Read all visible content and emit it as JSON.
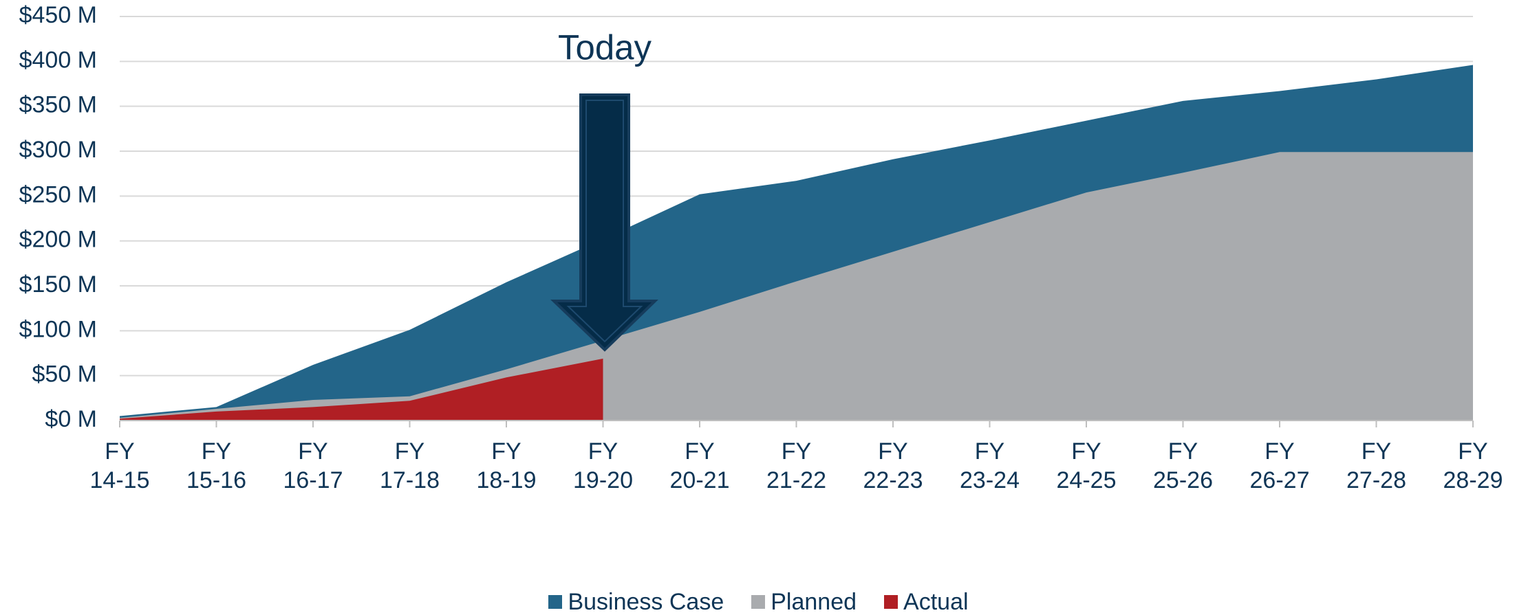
{
  "chart_data": {
    "type": "area",
    "annotation": "Today",
    "categories": [
      "FY\n14-15",
      "FY\n15-16",
      "FY\n16-17",
      "FY\n17-18",
      "FY\n18-19",
      "FY\n19-20",
      "FY\n20-21",
      "FY\n21-22",
      "FY\n22-23",
      "FY\n23-24",
      "FY\n24-25",
      "FY\n25-26",
      "FY\n26-27",
      "FY\n27-28",
      "FY\n28-29"
    ],
    "series": [
      {
        "name": "Business Case",
        "color": "#236589",
        "values": [
          5,
          15,
          62,
          101,
          154,
          202,
          252,
          267,
          291,
          312,
          334,
          356,
          367,
          380,
          396
        ]
      },
      {
        "name": "Planned",
        "color": "#a9abae",
        "values": [
          3,
          13,
          23,
          27,
          57,
          89,
          121,
          155,
          188,
          221,
          254,
          276,
          299,
          299,
          299
        ]
      },
      {
        "name": "Actual",
        "color": "#b01f24",
        "values": [
          2,
          10,
          15,
          22,
          48,
          69,
          null,
          null,
          null,
          null,
          null,
          null,
          null,
          null,
          null
        ]
      }
    ],
    "ylim": [
      0,
      450
    ],
    "yticks": [
      {
        "value": 0,
        "label": "$0 M"
      },
      {
        "value": 50,
        "label": "$50 M"
      },
      {
        "value": 100,
        "label": "$100 M"
      },
      {
        "value": 150,
        "label": "$150 M"
      },
      {
        "value": 200,
        "label": "$200 M"
      },
      {
        "value": 250,
        "label": "$250 M"
      },
      {
        "value": 300,
        "label": "$300 M"
      },
      {
        "value": 350,
        "label": "$350 M"
      },
      {
        "value": 400,
        "label": "$400 M"
      },
      {
        "value": 450,
        "label": "$450 M"
      }
    ],
    "grid": true
  }
}
